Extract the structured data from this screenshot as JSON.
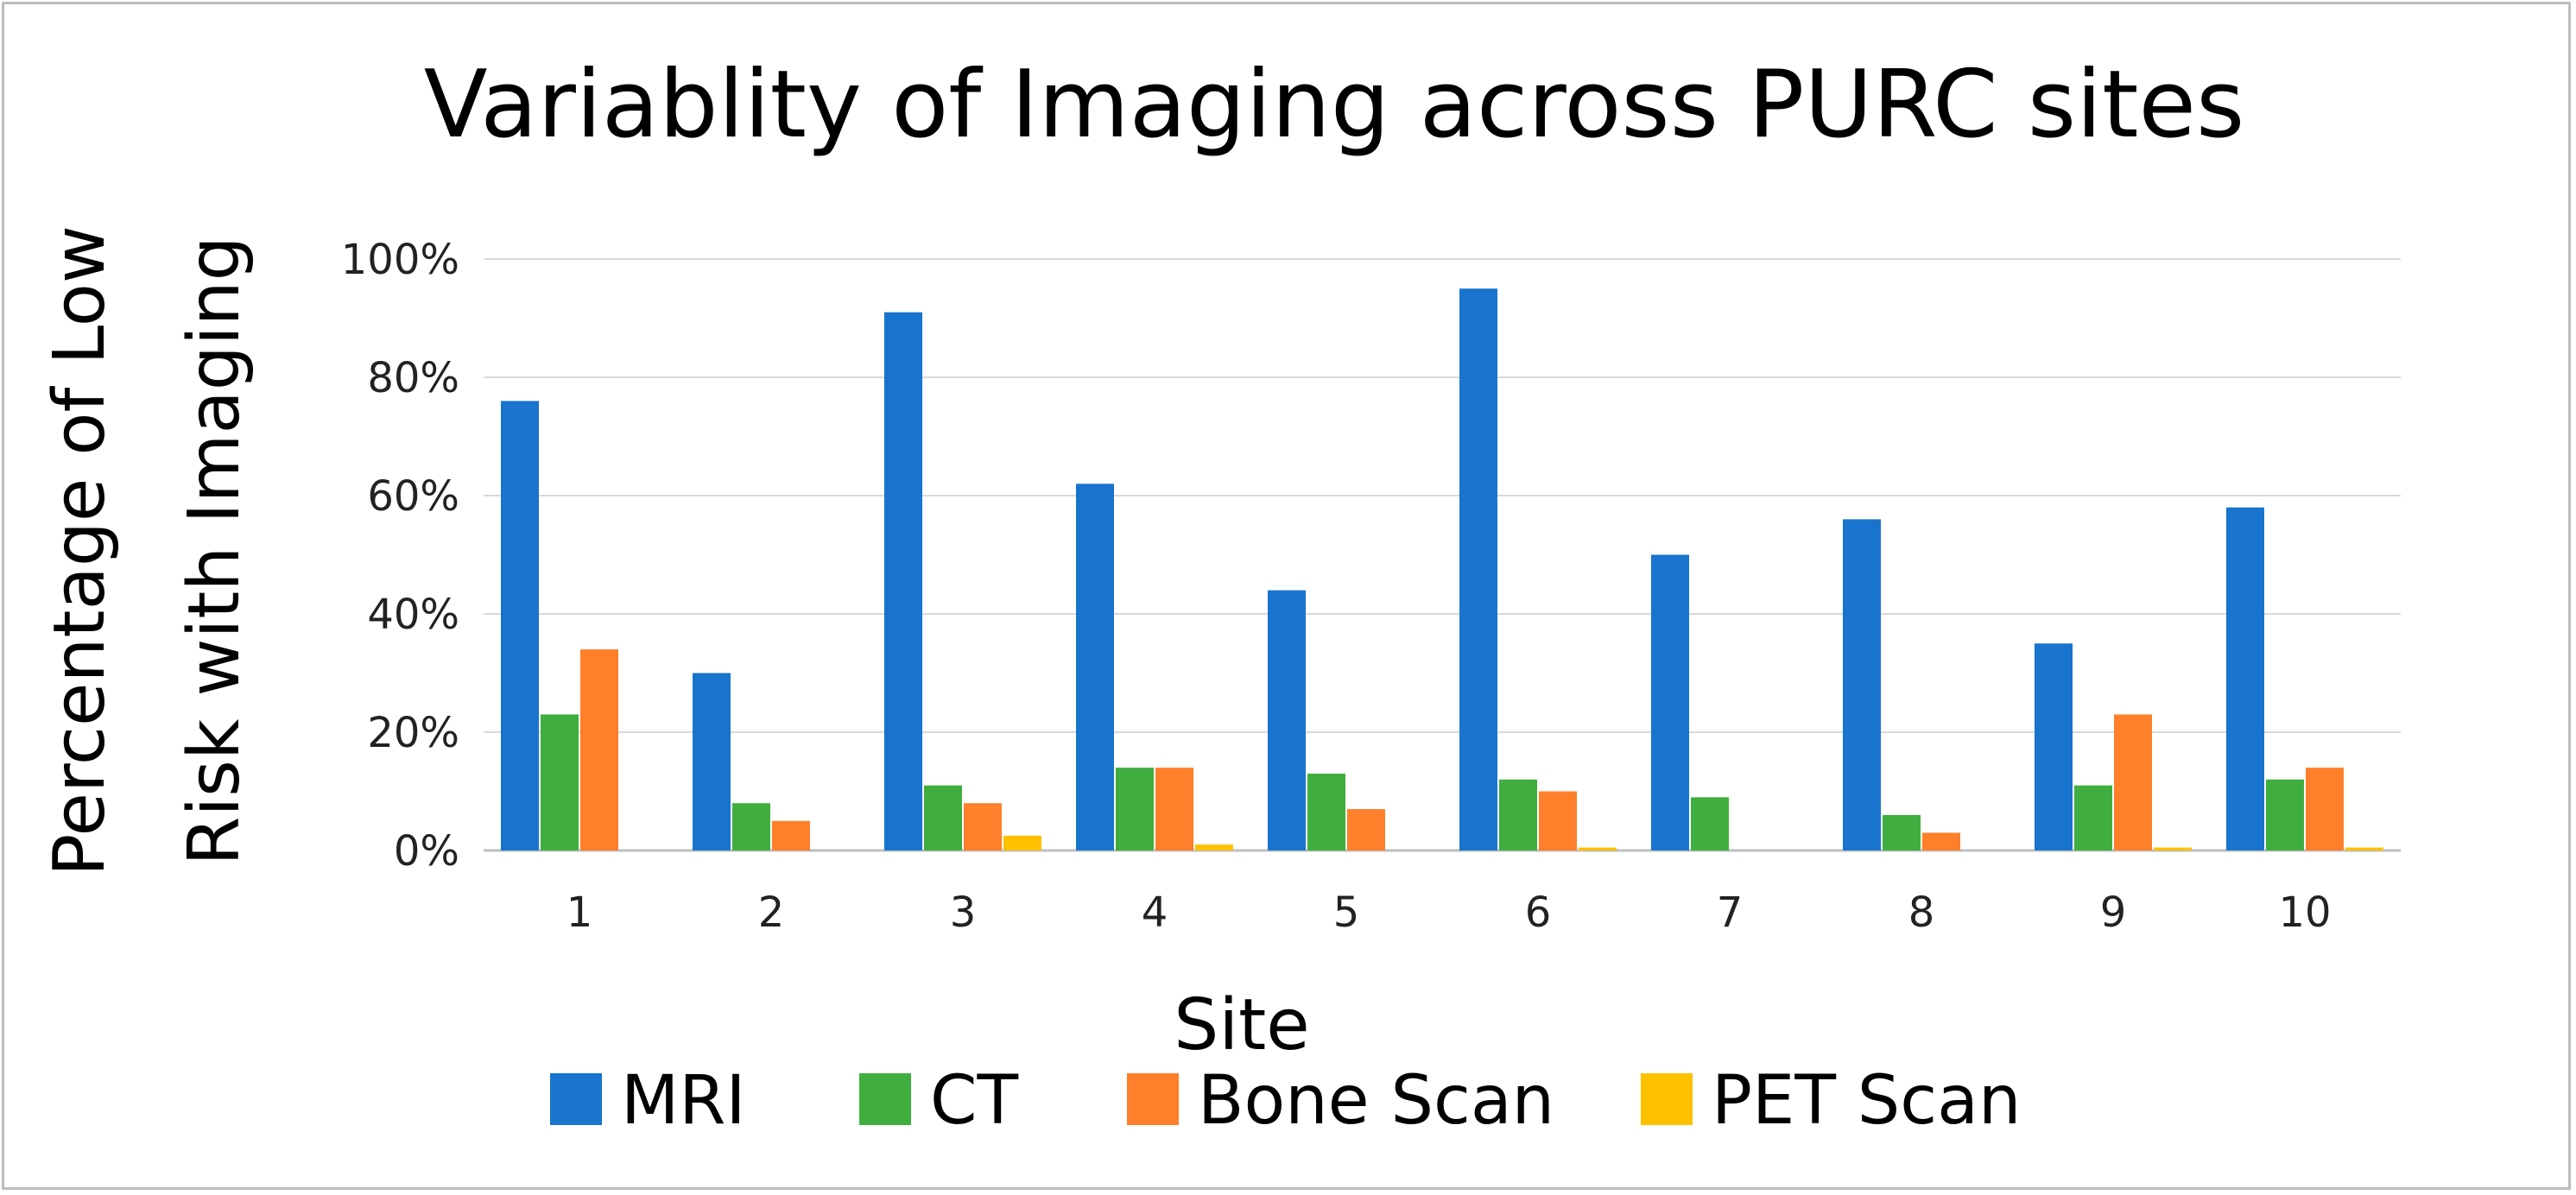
{
  "chart_data": {
    "type": "bar",
    "title": "Variablity of Imaging across PURC sites",
    "xlabel": "Site",
    "ylabel": [
      "Percentage of Low",
      "Risk with Imaging"
    ],
    "categories": [
      "1",
      "2",
      "3",
      "4",
      "5",
      "6",
      "7",
      "8",
      "9",
      "10"
    ],
    "yticks": [
      "0%",
      "20%",
      "40%",
      "60%",
      "80%",
      "100%"
    ],
    "ylim": [
      0,
      100
    ],
    "grid": true,
    "legend_position": "bottom",
    "series": [
      {
        "name": "MRI",
        "color": "#1874CD",
        "values": [
          76,
          30,
          91,
          62,
          44,
          95,
          50,
          56,
          35,
          58
        ]
      },
      {
        "name": "CT",
        "color": "#3FAE3F",
        "values": [
          23,
          8,
          11,
          14,
          13,
          12,
          9,
          6,
          11,
          12
        ]
      },
      {
        "name": "Bone Scan",
        "color": "#FF7F2A",
        "values": [
          34,
          5,
          8,
          14,
          7,
          10,
          0,
          3,
          23,
          14
        ]
      },
      {
        "name": "PET Scan",
        "color": "#FFC000",
        "values": [
          0,
          0,
          2.5,
          1,
          0,
          0.5,
          0,
          0,
          0.5,
          0.5
        ]
      }
    ]
  }
}
